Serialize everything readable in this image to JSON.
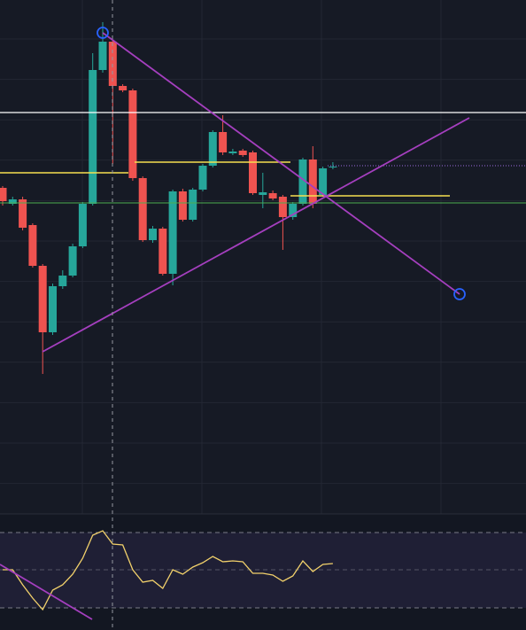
{
  "chart_data": [
    {
      "type": "candlestick",
      "open": [
        368,
        350,
        355,
        326,
        280,
        205,
        257,
        269,
        302,
        350,
        501,
        533,
        483,
        478,
        379,
        309,
        322,
        271,
        364,
        332,
        366,
        393,
        431,
        407,
        410,
        408,
        360,
        362,
        358,
        335,
        350,
        400,
        360,
        391
      ],
      "close": [
        353,
        355,
        323,
        280,
        205,
        257,
        269,
        302,
        350,
        501,
        533,
        483,
        478,
        379,
        309,
        322,
        271,
        364,
        332,
        366,
        393,
        431,
        408,
        409,
        405,
        362,
        363,
        356,
        335,
        350,
        400,
        350,
        390,
        392
      ],
      "high": [
        370,
        358,
        358,
        328,
        282,
        260,
        275,
        305,
        352,
        520,
        555,
        535,
        485,
        480,
        381,
        325,
        324,
        366,
        367,
        368,
        395,
        433,
        450,
        412,
        412,
        410,
        385,
        365,
        360,
        352,
        402,
        415,
        392,
        397
      ],
      "low": [
        348,
        348,
        320,
        278,
        158,
        202,
        254,
        267,
        300,
        348,
        498,
        395,
        476,
        376,
        307,
        306,
        269,
        258,
        330,
        330,
        364,
        391,
        405,
        405,
        403,
        360,
        345,
        354,
        298,
        332,
        348,
        345,
        358,
        389
      ],
      "up_color": "#26a69a",
      "down_color": "#ef5350",
      "ylim": [
        0,
        580
      ]
    },
    {
      "type": "line",
      "series": [
        {
          "color": "#f2d16b",
          "values": [
            68,
            68,
            51,
            36,
            23,
            45,
            51,
            63,
            81,
            107,
            112,
            97,
            96,
            68,
            54,
            56,
            47,
            68,
            63,
            71,
            76,
            83,
            77,
            78,
            77,
            64,
            64,
            62,
            55,
            61,
            78,
            66,
            74,
            75
          ]
        }
      ],
      "ylim": [
        0,
        131
      ]
    }
  ]
}
